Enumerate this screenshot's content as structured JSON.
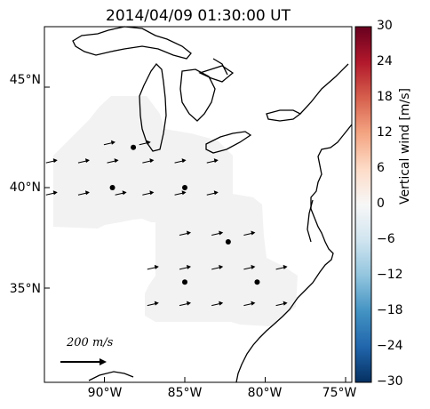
{
  "title": "2014/04/09 01:30:00 UT",
  "latitude_labels": [
    "45°N",
    "40°N",
    "35°N"
  ],
  "longitude_labels": [
    "90°W",
    "85°W",
    "80°W",
    "75°W"
  ],
  "colorbar": {
    "label": "Vertical wind [m/s]",
    "ticks": [
      "30",
      "24",
      "18",
      "12",
      "6",
      "0",
      "−6",
      "−12",
      "−18",
      "−24",
      "−30"
    ],
    "colors": [
      "#053061",
      "#2166ac",
      "#4393c3",
      "#92c5de",
      "#d1e5f0",
      "#f7f7f7",
      "#fddbc7",
      "#f4a582",
      "#d6604d",
      "#b2182b",
      "#67001f"
    ]
  },
  "scale_arrow": {
    "label": "200 m/s"
  },
  "stations": [
    {
      "lon": -88.2,
      "lat": 42.0
    },
    {
      "lon": -89.5,
      "lat": 40.0
    },
    {
      "lon": -85.0,
      "lat": 40.0
    },
    {
      "lon": -82.3,
      "lat": 37.3
    },
    {
      "lon": -85.0,
      "lat": 35.3
    },
    {
      "lon": -80.5,
      "lat": 35.3
    }
  ],
  "wind_vectors_rows": [
    {
      "lat": 42.2,
      "lons": [
        -89.7,
        -87.5
      ]
    },
    {
      "lat": 41.3,
      "lons": [
        -93.3,
        -91.3,
        -89.5,
        -87.3,
        -85.3,
        -83.3
      ]
    },
    {
      "lat": 39.7,
      "lons": [
        -93.3,
        -91.3,
        -89.0,
        -87.3,
        -85.3,
        -83.3
      ]
    },
    {
      "lat": 37.7,
      "lons": [
        -85.0,
        -83.0,
        -81.0
      ]
    },
    {
      "lat": 36.0,
      "lons": [
        -87.0,
        -85.0,
        -83.0,
        -81.0,
        -79.0
      ]
    },
    {
      "lat": 34.2,
      "lons": [
        -87.0,
        -85.0,
        -83.0,
        -81.0,
        -79.0
      ]
    }
  ]
}
